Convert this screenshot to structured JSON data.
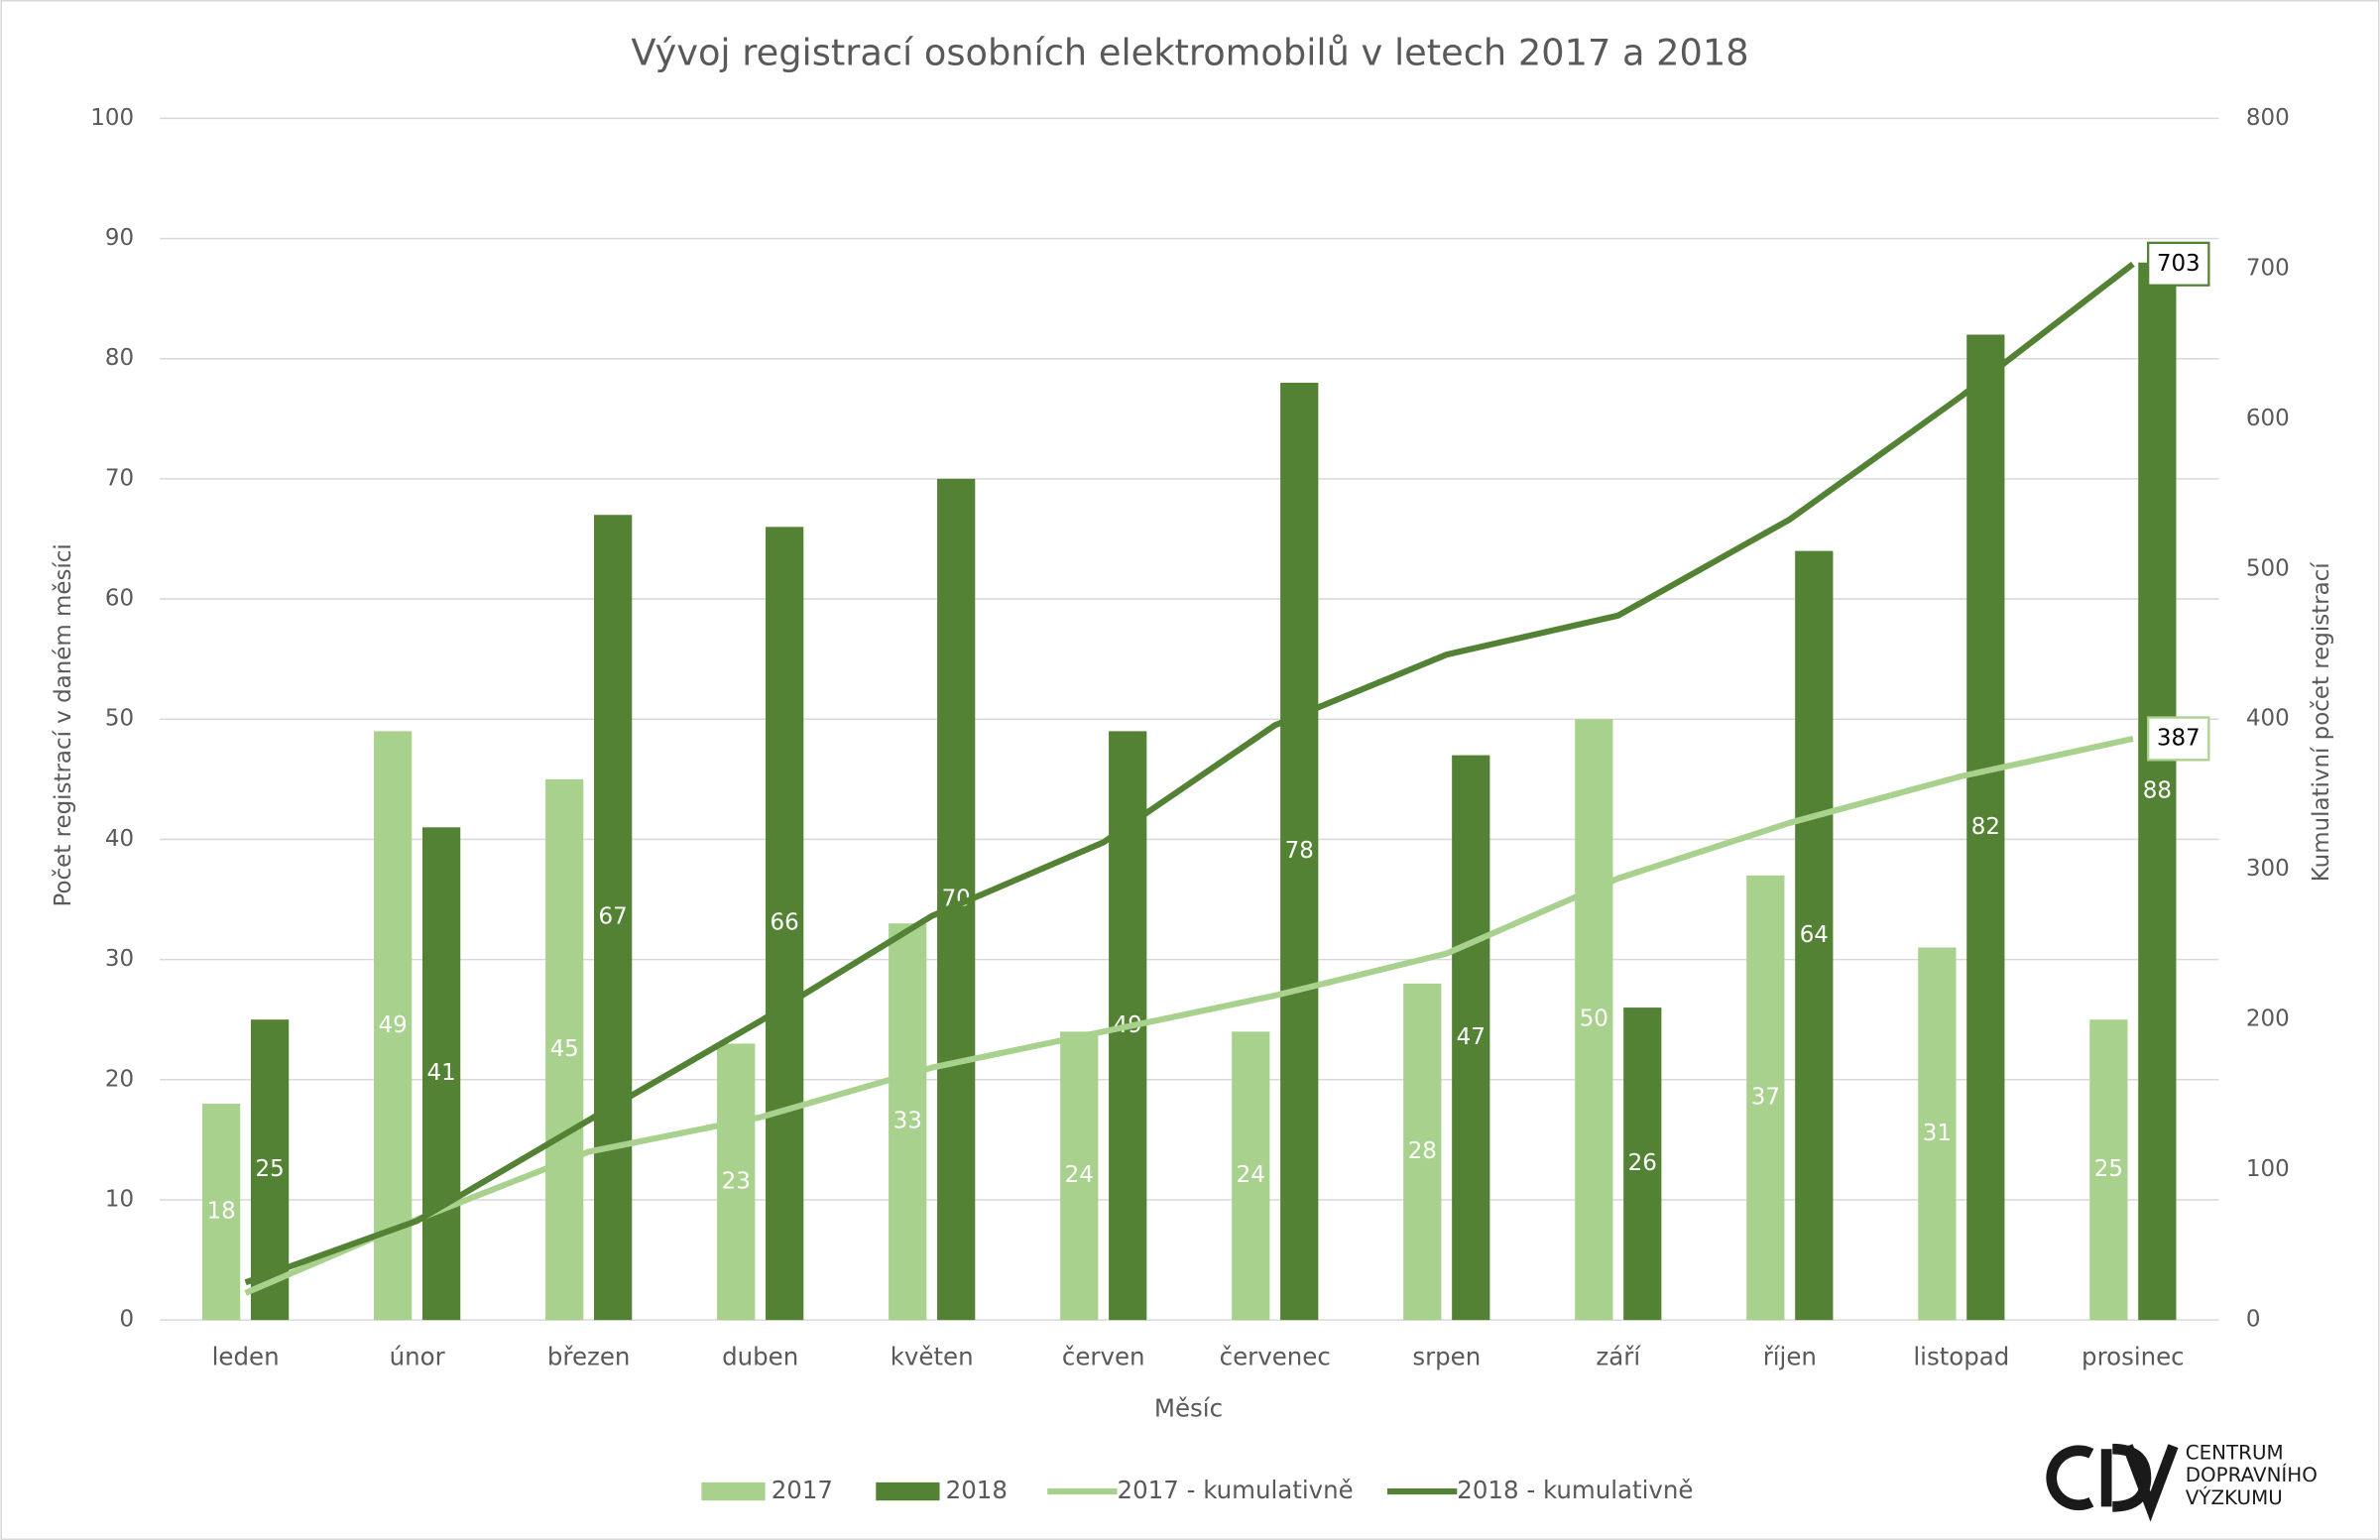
{
  "chart_data": {
    "type": "bar",
    "title": "Vývoj registrací osobních elektromobilů v letech 2017 a 2018",
    "x_label": "Měsíc",
    "y_label": "Počet registrací v daném měsíci",
    "y2_label": "Kumulativní počet registrací",
    "categories": [
      "leden",
      "únor",
      "březen",
      "duben",
      "květen",
      "červen",
      "červenec",
      "srpen",
      "září",
      "říjen",
      "listopad",
      "prosinec"
    ],
    "series": [
      {
        "name": "2017",
        "type": "bar",
        "color": "#a9d18e",
        "values": [
          18,
          49,
          45,
          23,
          33,
          24,
          24,
          28,
          50,
          37,
          31,
          25
        ]
      },
      {
        "name": "2018",
        "type": "bar",
        "color": "#548235",
        "values": [
          25,
          41,
          67,
          66,
          70,
          49,
          78,
          47,
          26,
          64,
          82,
          88
        ]
      },
      {
        "name": "2017 - kumulativně",
        "type": "line",
        "axis": "y2",
        "color": "#a9d18e",
        "label_last": true,
        "values": [
          18,
          67,
          112,
          135,
          168,
          192,
          216,
          244,
          294,
          331,
          362,
          387
        ]
      },
      {
        "name": "2018 - kumulativně",
        "type": "line",
        "axis": "y2",
        "color": "#548235",
        "label_last": true,
        "values": [
          25,
          66,
          133,
          199,
          269,
          318,
          396,
          443,
          469,
          533,
          615,
          703
        ]
      }
    ],
    "ylim": [
      0,
      100
    ],
    "yticks": [
      0,
      10,
      20,
      30,
      40,
      50,
      60,
      70,
      80,
      90,
      100
    ],
    "y2lim": [
      0,
      800
    ],
    "y2ticks": [
      0,
      100,
      200,
      300,
      400,
      500,
      600,
      700,
      800
    ],
    "grid": true,
    "legend": "bottom",
    "logo": [
      "CENTRUM",
      "DOPRAVNÍHO",
      "VÝZKUMU"
    ]
  }
}
